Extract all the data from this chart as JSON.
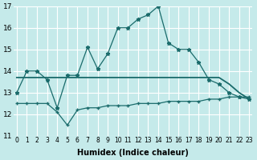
{
  "xlabel": "Humidex (Indice chaleur)",
  "background_color": "#c5eaea",
  "grid_color": "#ffffff",
  "line_color": "#1a6b6b",
  "x_min": 0,
  "x_max": 23,
  "y_min": 11,
  "y_max": 17,
  "line1_x": [
    0,
    1,
    2,
    3,
    4,
    5,
    6,
    7,
    8,
    9,
    10,
    11,
    12,
    13,
    14,
    15,
    16,
    17,
    18,
    19,
    20,
    21,
    22,
    23
  ],
  "line1_y": [
    13.0,
    14.0,
    14.0,
    13.6,
    12.3,
    13.8,
    13.8,
    15.1,
    14.1,
    14.8,
    16.0,
    16.0,
    16.4,
    16.6,
    17.0,
    15.3,
    15.0,
    15.0,
    14.4,
    13.6,
    13.4,
    13.0,
    12.8,
    12.7
  ],
  "line2_x": [
    0,
    1,
    2,
    3,
    4,
    5,
    6,
    7,
    8,
    9,
    10,
    11,
    12,
    13,
    14,
    15,
    16,
    17,
    18,
    19,
    20,
    21,
    22,
    23
  ],
  "line2_y": [
    13.7,
    13.7,
    13.7,
    13.7,
    13.7,
    13.7,
    13.7,
    13.7,
    13.7,
    13.7,
    13.7,
    13.7,
    13.7,
    13.7,
    13.7,
    13.7,
    13.7,
    13.7,
    13.7,
    13.7,
    13.7,
    13.4,
    13.0,
    12.7
  ],
  "line3_x": [
    0,
    1,
    2,
    3,
    4,
    5,
    6,
    7,
    8,
    9,
    10,
    11,
    12,
    13,
    14,
    15,
    16,
    17,
    18,
    19,
    20,
    21,
    22,
    23
  ],
  "line3_y": [
    12.5,
    12.5,
    12.5,
    12.5,
    12.1,
    11.5,
    12.2,
    12.3,
    12.3,
    12.4,
    12.4,
    12.4,
    12.5,
    12.5,
    12.5,
    12.6,
    12.6,
    12.6,
    12.6,
    12.7,
    12.7,
    12.8,
    12.8,
    12.8
  ],
  "ytick_labels": [
    "11",
    "12",
    "13",
    "14",
    "15",
    "16",
    "17"
  ],
  "xtick_labels": [
    "0",
    "1",
    "2",
    "3",
    "4",
    "5",
    "6",
    "7",
    "8",
    "9",
    "10",
    "11",
    "12",
    "13",
    "14",
    "15",
    "16",
    "17",
    "18",
    "19",
    "20",
    "21",
    "22",
    "23"
  ]
}
